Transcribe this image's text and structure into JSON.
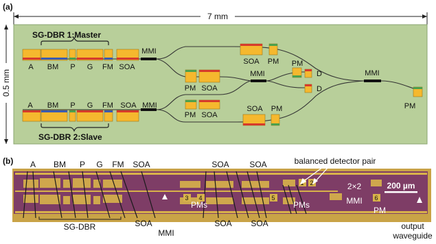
{
  "panel_a": {
    "tag": "(a)",
    "width_dim": "7 mm",
    "height_dim": "0.5 mm",
    "master_title": "SG-DBR 1:Master",
    "slave_title": "SG-DBR 2:Slave",
    "top_labels": [
      "A",
      "BM",
      "P",
      "G",
      "FM",
      "SOA",
      "MMI"
    ],
    "bottom_labels": [
      "A",
      "BM",
      "P",
      "G",
      "FM",
      "SOA",
      "MMI"
    ],
    "mid_pm_upper": "PM",
    "mid_soa_upper": "SOA",
    "mid_pm_lower": "PM",
    "mid_soa_lower": "SOA",
    "center_mmi": "MMI",
    "upper_soa": "SOA",
    "upper_pm": "PM",
    "lower_soa": "SOA",
    "lower_pm": "PM",
    "pd_pm": "PM",
    "det1": "D",
    "det2": "D",
    "final_mmi": "MMI",
    "final_pm": "PM",
    "colors": {
      "background": "#b8cf9a",
      "pad": "#f5b82e",
      "pad_edge": "#9a7418",
      "stripe_red": "#d63b2b",
      "stripe_blue": "#3b5bb0",
      "stripe_green": "#4ca04c",
      "waveguide": "#333333",
      "mmi": "#111111"
    }
  },
  "panel_b": {
    "tag": "(b)",
    "top_labels": {
      "a": "A",
      "bm": "BM",
      "p": "P",
      "g": "G",
      "fm": "FM",
      "soa": "SOA",
      "soa_mid1": "SOA",
      "soa_mid2": "SOA"
    },
    "balanced_pair": "balanced detector pair",
    "sgdbr": "SG-DBR",
    "soa_low1": "SOA",
    "soa_low2": "SOA",
    "soa_low3": "SOA",
    "mmi_low": "MMI",
    "pms_left": "PMs",
    "pms_right": "PMs",
    "mmi_2x2_line1": "2×2",
    "mmi_2x2_line2": "MMI",
    "scale": "200 µm",
    "pm_right": "PM",
    "output_line1": "output",
    "output_line2": "waveguide",
    "pad_numbers": [
      "1",
      "2",
      "3",
      "4",
      "5",
      "6"
    ],
    "colors": {
      "chip": "#7e3d66",
      "chip_edge": "#c9a347",
      "pad": "#d8b24a",
      "wire": "#1a1a1a"
    }
  }
}
